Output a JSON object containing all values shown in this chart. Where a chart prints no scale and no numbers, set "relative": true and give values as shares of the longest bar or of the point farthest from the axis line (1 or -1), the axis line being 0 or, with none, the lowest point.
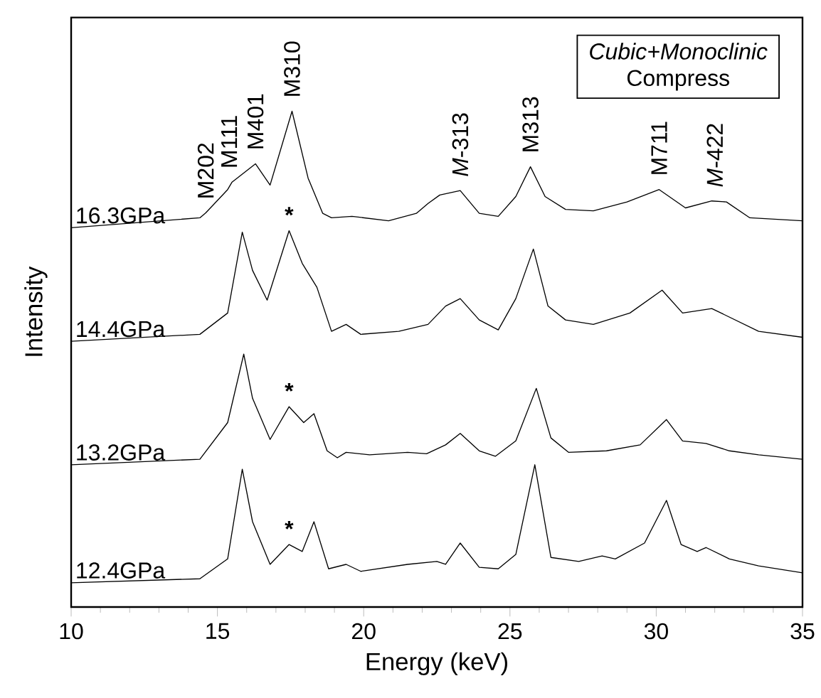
{
  "chart_data": {
    "type": "line",
    "relative": true,
    "title": "Cubic+Monoclinic",
    "subtitle": "Compress",
    "xlabel": "Energy (keV)",
    "ylabel": "Intensity",
    "xlim": [
      10,
      35
    ],
    "xticks": [
      10,
      15,
      20,
      25,
      30,
      35
    ],
    "legend": false,
    "grid": false,
    "marker": "none",
    "line_style": "solid",
    "series": [
      {
        "name": "16.3GPa",
        "color": "#000000",
        "x": [
          10,
          14.4,
          14.6,
          15.35,
          15.5,
          16.3,
          16.8,
          17.55,
          18.1,
          18.6,
          18.9,
          19.6,
          20.85,
          21.8,
          22.2,
          22.6,
          23.3,
          23.95,
          24.6,
          25.2,
          25.7,
          26.2,
          26.9,
          27.85,
          29.0,
          30.1,
          31.0,
          31.9,
          32.4,
          33.2,
          35
        ],
        "values": [
          0.765,
          0.785,
          0.795,
          0.842,
          0.857,
          0.894,
          0.851,
          1.0,
          0.865,
          0.794,
          0.785,
          0.788,
          0.779,
          0.794,
          0.814,
          0.831,
          0.84,
          0.794,
          0.788,
          0.828,
          0.888,
          0.828,
          0.802,
          0.799,
          0.817,
          0.842,
          0.805,
          0.819,
          0.817,
          0.785,
          0.779
        ]
      },
      {
        "name": "14.4GPa",
        "color": "#000000",
        "x": [
          10,
          14.4,
          15.35,
          15.85,
          16.2,
          16.7,
          17.45,
          17.9,
          18.4,
          18.9,
          19.4,
          19.9,
          21.2,
          22.2,
          22.8,
          23.3,
          23.95,
          24.6,
          25.2,
          25.8,
          26.3,
          26.9,
          27.85,
          29.1,
          30.2,
          30.9,
          31.9,
          32.7,
          33.5,
          35
        ],
        "values": [
          0.536,
          0.55,
          0.593,
          0.756,
          0.679,
          0.619,
          0.759,
          0.693,
          0.645,
          0.556,
          0.57,
          0.55,
          0.556,
          0.57,
          0.607,
          0.622,
          0.579,
          0.559,
          0.622,
          0.722,
          0.607,
          0.579,
          0.57,
          0.593,
          0.639,
          0.593,
          0.602,
          0.579,
          0.556,
          0.544
        ]
      },
      {
        "name": "13.2GPa",
        "color": "#000000",
        "x": [
          10,
          14.4,
          15.35,
          15.9,
          16.2,
          16.8,
          17.45,
          17.95,
          18.3,
          18.75,
          19.1,
          19.4,
          20.2,
          21.5,
          22.15,
          22.8,
          23.3,
          23.95,
          24.5,
          25.2,
          25.9,
          26.4,
          27.0,
          28.3,
          29.45,
          30.35,
          30.9,
          31.7,
          32.5,
          33.5,
          35
        ],
        "values": [
          0.287,
          0.298,
          0.372,
          0.51,
          0.421,
          0.338,
          0.404,
          0.372,
          0.39,
          0.315,
          0.301,
          0.312,
          0.307,
          0.312,
          0.309,
          0.327,
          0.35,
          0.315,
          0.304,
          0.335,
          0.441,
          0.341,
          0.312,
          0.315,
          0.327,
          0.378,
          0.335,
          0.33,
          0.315,
          0.307,
          0.298
        ]
      },
      {
        "name": "12.4GPa",
        "color": "#000000",
        "x": [
          10,
          14.4,
          15.35,
          15.85,
          16.2,
          16.8,
          17.45,
          17.9,
          18.3,
          18.8,
          19.4,
          19.9,
          21.5,
          22.5,
          22.8,
          23.3,
          23.95,
          24.6,
          25.2,
          25.85,
          26.4,
          27.35,
          28.15,
          28.6,
          29.6,
          30.35,
          30.85,
          31.4,
          31.7,
          32.5,
          33.5,
          35
        ],
        "values": [
          0.049,
          0.057,
          0.097,
          0.278,
          0.172,
          0.086,
          0.126,
          0.112,
          0.172,
          0.077,
          0.086,
          0.072,
          0.086,
          0.092,
          0.086,
          0.129,
          0.08,
          0.077,
          0.106,
          0.287,
          0.1,
          0.092,
          0.103,
          0.097,
          0.129,
          0.215,
          0.126,
          0.112,
          0.12,
          0.097,
          0.083,
          0.069
        ]
      }
    ],
    "annotations": [
      {
        "text": "M202",
        "x": 14.6,
        "y": 0.795
      },
      {
        "text": "M111",
        "x": 15.4,
        "y": 0.857
      },
      {
        "text": "M401",
        "x": 16.3,
        "y": 0.894
      },
      {
        "text": "M310",
        "x": 17.55,
        "y": 1.0
      },
      {
        "text": "*M*-313",
        "x": 23.3,
        "y": 0.84
      },
      {
        "text": "M313",
        "x": 25.7,
        "y": 0.888
      },
      {
        "text": "M711",
        "x": 30.1,
        "y": 0.842
      },
      {
        "text": "*M*-422",
        "x": 32.0,
        "y": 0.819
      },
      {
        "text": "*",
        "x": 17.45,
        "y": 0.759
      },
      {
        "text": "*",
        "x": 17.45,
        "y": 0.404
      },
      {
        "text": "*",
        "x": 17.45,
        "y": 0.126
      }
    ]
  }
}
